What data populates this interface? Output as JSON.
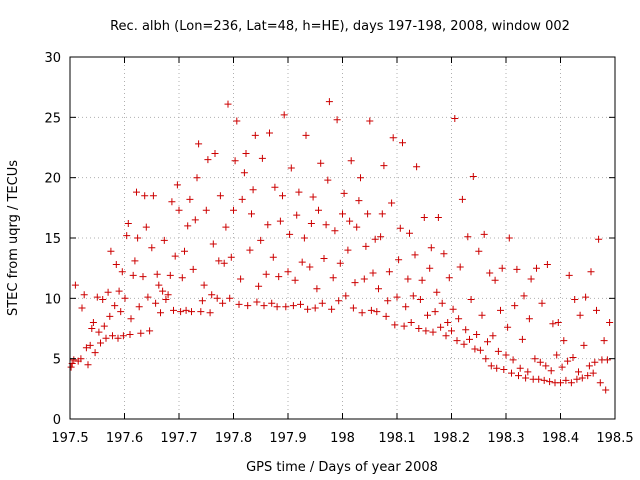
{
  "chart_data": {
    "type": "scatter",
    "title": "Rec. albh (Lon=236, Lat=48, h=HE), days 197-198, 2008, window 002",
    "xlabel": "GPS time / Days of year 2008",
    "ylabel": "STEC from uqrg / TECUs",
    "xlim": [
      197.5,
      198.5
    ],
    "ylim": [
      0,
      30
    ],
    "x_ticks": [
      197.5,
      197.6,
      197.7,
      197.8,
      197.9,
      198,
      198.1,
      198.2,
      198.3,
      198.4,
      198.5
    ],
    "x_tick_labels": [
      "197.5",
      "197.6",
      "197.7",
      "197.8",
      "197.9",
      "198",
      "198.1",
      "198.2",
      "198.3",
      "198.4",
      "198.5"
    ],
    "y_ticks": [
      0,
      5,
      10,
      15,
      20,
      25,
      30
    ],
    "y_tick_labels": [
      "0",
      "5",
      "10",
      "15",
      "20",
      "25",
      "30"
    ],
    "grid": true,
    "marker": "plus",
    "color": "#cc0000",
    "series": [
      {
        "points": [
          [
            197.502,
            4.3
          ],
          [
            197.504,
            4.6
          ],
          [
            197.507,
            4.9
          ],
          [
            197.51,
            11.1
          ],
          [
            197.515,
            4.8
          ],
          [
            197.52,
            5.0
          ],
          [
            197.522,
            9.2
          ],
          [
            197.526,
            10.3
          ],
          [
            197.53,
            5.9
          ],
          [
            197.533,
            4.5
          ],
          [
            197.537,
            6.1
          ],
          [
            197.54,
            7.5
          ],
          [
            197.543,
            8.0
          ],
          [
            197.546,
            5.5
          ],
          [
            197.55,
            10.1
          ],
          [
            197.553,
            7.2
          ],
          [
            197.556,
            6.3
          ],
          [
            197.56,
            9.9
          ],
          [
            197.563,
            7.7
          ],
          [
            197.566,
            6.7
          ],
          [
            197.57,
            10.5
          ],
          [
            197.573,
            8.5
          ],
          [
            197.575,
            13.9
          ],
          [
            197.578,
            6.9
          ],
          [
            197.582,
            9.4
          ],
          [
            197.585,
            12.8
          ],
          [
            197.588,
            6.7
          ],
          [
            197.59,
            10.6
          ],
          [
            197.593,
            8.9
          ],
          [
            197.596,
            12.2
          ],
          [
            197.598,
            6.9
          ],
          [
            197.601,
            10.0
          ],
          [
            197.604,
            15.2
          ],
          [
            197.607,
            16.2
          ],
          [
            197.61,
            7.0
          ],
          [
            197.612,
            8.3
          ],
          [
            197.616,
            11.9
          ],
          [
            197.619,
            13.1
          ],
          [
            197.622,
            18.8
          ],
          [
            197.624,
            15.0
          ],
          [
            197.627,
            9.3
          ],
          [
            197.63,
            7.1
          ],
          [
            197.634,
            11.8
          ],
          [
            197.637,
            18.5
          ],
          [
            197.64,
            15.9
          ],
          [
            197.643,
            10.1
          ],
          [
            197.646,
            7.3
          ],
          [
            197.65,
            14.2
          ],
          [
            197.653,
            18.5
          ],
          [
            197.657,
            9.6
          ],
          [
            197.66,
            12.0
          ],
          [
            197.663,
            11.1
          ],
          [
            197.666,
            8.8
          ],
          [
            197.67,
            10.6
          ],
          [
            197.673,
            14.8
          ],
          [
            197.676,
            9.9
          ],
          [
            197.68,
            10.3
          ],
          [
            197.684,
            11.9
          ],
          [
            197.687,
            18.0
          ],
          [
            197.69,
            9.0
          ],
          [
            197.693,
            13.5
          ],
          [
            197.697,
            19.4
          ],
          [
            197.7,
            17.3
          ],
          [
            197.703,
            8.9
          ],
          [
            197.706,
            11.7
          ],
          [
            197.71,
            13.9
          ],
          [
            197.713,
            9.0
          ],
          [
            197.716,
            16.0
          ],
          [
            197.72,
            18.2
          ],
          [
            197.723,
            8.9
          ],
          [
            197.726,
            12.4
          ],
          [
            197.73,
            16.5
          ],
          [
            197.733,
            20.0
          ],
          [
            197.736,
            22.8
          ],
          [
            197.74,
            8.9
          ],
          [
            197.743,
            9.8
          ],
          [
            197.746,
            11.1
          ],
          [
            197.75,
            17.3
          ],
          [
            197.753,
            21.5
          ],
          [
            197.757,
            8.8
          ],
          [
            197.76,
            10.3
          ],
          [
            197.763,
            14.5
          ],
          [
            197.766,
            22.0
          ],
          [
            197.77,
            10.0
          ],
          [
            197.773,
            13.1
          ],
          [
            197.776,
            18.5
          ],
          [
            197.78,
            9.6
          ],
          [
            197.783,
            12.9
          ],
          [
            197.786,
            15.9
          ],
          [
            197.79,
            26.1
          ],
          [
            197.793,
            10.0
          ],
          [
            197.796,
            13.4
          ],
          [
            197.8,
            17.3
          ],
          [
            197.803,
            21.4
          ],
          [
            197.806,
            24.7
          ],
          [
            197.81,
            9.5
          ],
          [
            197.813,
            11.6
          ],
          [
            197.816,
            18.2
          ],
          [
            197.82,
            20.4
          ],
          [
            197.823,
            22.0
          ],
          [
            197.826,
            9.4
          ],
          [
            197.83,
            14.0
          ],
          [
            197.833,
            17.0
          ],
          [
            197.836,
            19.0
          ],
          [
            197.84,
            23.5
          ],
          [
            197.843,
            9.7
          ],
          [
            197.846,
            11.0
          ],
          [
            197.85,
            14.8
          ],
          [
            197.853,
            21.6
          ],
          [
            197.856,
            9.4
          ],
          [
            197.86,
            12.0
          ],
          [
            197.863,
            16.1
          ],
          [
            197.866,
            23.7
          ],
          [
            197.87,
            9.6
          ],
          [
            197.873,
            13.4
          ],
          [
            197.876,
            19.2
          ],
          [
            197.88,
            9.3
          ],
          [
            197.883,
            11.8
          ],
          [
            197.886,
            16.4
          ],
          [
            197.89,
            18.5
          ],
          [
            197.893,
            25.2
          ],
          [
            197.896,
            9.3
          ],
          [
            197.9,
            12.2
          ],
          [
            197.903,
            15.3
          ],
          [
            197.906,
            20.8
          ],
          [
            197.91,
            9.4
          ],
          [
            197.913,
            11.5
          ],
          [
            197.916,
            16.9
          ],
          [
            197.92,
            18.8
          ],
          [
            197.923,
            9.5
          ],
          [
            197.926,
            13.0
          ],
          [
            197.93,
            15.0
          ],
          [
            197.933,
            23.5
          ],
          [
            197.936,
            9.1
          ],
          [
            197.94,
            12.6
          ],
          [
            197.943,
            16.2
          ],
          [
            197.946,
            18.4
          ],
          [
            197.95,
            9.2
          ],
          [
            197.953,
            10.8
          ],
          [
            197.956,
            17.3
          ],
          [
            197.96,
            21.2
          ],
          [
            197.963,
            9.6
          ],
          [
            197.966,
            13.3
          ],
          [
            197.97,
            16.1
          ],
          [
            197.973,
            19.8
          ],
          [
            197.976,
            26.3
          ],
          [
            197.98,
            9.1
          ],
          [
            197.983,
            11.7
          ],
          [
            197.986,
            15.6
          ],
          [
            197.99,
            24.8
          ],
          [
            197.993,
            9.8
          ],
          [
            197.996,
            12.9
          ],
          [
            198.0,
            17.0
          ],
          [
            198.003,
            18.7
          ],
          [
            198.006,
            10.2
          ],
          [
            198.01,
            14.0
          ],
          [
            198.013,
            16.4
          ],
          [
            198.016,
            21.4
          ],
          [
            198.02,
            9.2
          ],
          [
            198.023,
            11.3
          ],
          [
            198.026,
            15.9
          ],
          [
            198.03,
            18.1
          ],
          [
            198.033,
            20.0
          ],
          [
            198.036,
            8.8
          ],
          [
            198.04,
            11.6
          ],
          [
            198.043,
            14.3
          ],
          [
            198.046,
            17.0
          ],
          [
            198.05,
            24.7
          ],
          [
            198.053,
            9.0
          ],
          [
            198.056,
            12.1
          ],
          [
            198.06,
            14.9
          ],
          [
            198.063,
            8.9
          ],
          [
            198.066,
            10.8
          ],
          [
            198.07,
            15.1
          ],
          [
            198.073,
            17.0
          ],
          [
            198.076,
            21.0
          ],
          [
            198.08,
            8.5
          ],
          [
            198.083,
            9.8
          ],
          [
            198.086,
            12.2
          ],
          [
            198.09,
            17.9
          ],
          [
            198.093,
            23.3
          ],
          [
            198.096,
            7.8
          ],
          [
            198.1,
            10.1
          ],
          [
            198.103,
            13.2
          ],
          [
            198.106,
            15.8
          ],
          [
            198.11,
            22.9
          ],
          [
            198.113,
            7.7
          ],
          [
            198.116,
            9.3
          ],
          [
            198.12,
            11.6
          ],
          [
            198.123,
            15.4
          ],
          [
            198.126,
            8.0
          ],
          [
            198.13,
            10.2
          ],
          [
            198.133,
            13.6
          ],
          [
            198.136,
            20.9
          ],
          [
            198.14,
            7.5
          ],
          [
            198.143,
            9.9
          ],
          [
            198.146,
            11.5
          ],
          [
            198.15,
            16.7
          ],
          [
            198.153,
            7.3
          ],
          [
            198.156,
            8.6
          ],
          [
            198.16,
            12.5
          ],
          [
            198.163,
            14.2
          ],
          [
            198.166,
            7.2
          ],
          [
            198.17,
            8.9
          ],
          [
            198.173,
            10.5
          ],
          [
            198.176,
            16.7
          ],
          [
            198.18,
            7.6
          ],
          [
            198.183,
            9.6
          ],
          [
            198.186,
            13.7
          ],
          [
            198.19,
            6.9
          ],
          [
            198.193,
            8.0
          ],
          [
            198.196,
            11.7
          ],
          [
            198.2,
            7.3
          ],
          [
            198.203,
            9.1
          ],
          [
            198.206,
            24.9
          ],
          [
            198.21,
            6.5
          ],
          [
            198.213,
            8.3
          ],
          [
            198.216,
            12.6
          ],
          [
            198.22,
            18.2
          ],
          [
            198.223,
            6.2
          ],
          [
            198.226,
            7.4
          ],
          [
            198.23,
            15.1
          ],
          [
            198.233,
            6.6
          ],
          [
            198.236,
            9.9
          ],
          [
            198.24,
            20.1
          ],
          [
            198.243,
            5.8
          ],
          [
            198.246,
            7.0
          ],
          [
            198.25,
            13.9
          ],
          [
            198.253,
            5.7
          ],
          [
            198.256,
            8.6
          ],
          [
            198.26,
            15.3
          ],
          [
            198.263,
            5.0
          ],
          [
            198.266,
            6.4
          ],
          [
            198.27,
            12.1
          ],
          [
            198.273,
            4.4
          ],
          [
            198.276,
            6.9
          ],
          [
            198.28,
            11.5
          ],
          [
            198.283,
            4.2
          ],
          [
            198.286,
            5.6
          ],
          [
            198.29,
            9.0
          ],
          [
            198.293,
            12.5
          ],
          [
            198.296,
            4.1
          ],
          [
            198.3,
            5.3
          ],
          [
            198.303,
            7.6
          ],
          [
            198.306,
            15.0
          ],
          [
            198.31,
            3.8
          ],
          [
            198.313,
            4.9
          ],
          [
            198.316,
            9.4
          ],
          [
            198.32,
            12.4
          ],
          [
            198.323,
            3.6
          ],
          [
            198.326,
            4.2
          ],
          [
            198.33,
            6.6
          ],
          [
            198.333,
            10.2
          ],
          [
            198.336,
            3.4
          ],
          [
            198.34,
            3.9
          ],
          [
            198.343,
            8.3
          ],
          [
            198.346,
            11.6
          ],
          [
            198.35,
            3.3
          ],
          [
            198.353,
            5.0
          ],
          [
            198.356,
            12.5
          ],
          [
            198.36,
            3.3
          ],
          [
            198.363,
            4.7
          ],
          [
            198.366,
            9.6
          ],
          [
            198.37,
            3.2
          ],
          [
            198.373,
            4.4
          ],
          [
            198.376,
            12.8
          ],
          [
            198.38,
            3.1
          ],
          [
            198.383,
            4.0
          ],
          [
            198.386,
            7.9
          ],
          [
            198.39,
            3.0
          ],
          [
            198.393,
            5.3
          ],
          [
            198.396,
            8.0
          ],
          [
            198.4,
            3.0
          ],
          [
            198.403,
            4.3
          ],
          [
            198.406,
            6.5
          ],
          [
            198.41,
            3.2
          ],
          [
            198.413,
            4.8
          ],
          [
            198.416,
            11.9
          ],
          [
            198.42,
            3.0
          ],
          [
            198.423,
            5.1
          ],
          [
            198.426,
            9.9
          ],
          [
            198.43,
            3.3
          ],
          [
            198.433,
            3.9
          ],
          [
            198.436,
            8.6
          ],
          [
            198.44,
            3.4
          ],
          [
            198.443,
            6.1
          ],
          [
            198.446,
            10.1
          ],
          [
            198.45,
            3.6
          ],
          [
            198.453,
            4.4
          ],
          [
            198.456,
            12.2
          ],
          [
            198.46,
            3.8
          ],
          [
            198.463,
            4.7
          ],
          [
            198.466,
            9.0
          ],
          [
            198.47,
            14.9
          ],
          [
            198.473,
            3.0
          ],
          [
            198.476,
            4.9
          ],
          [
            198.48,
            6.5
          ],
          [
            198.483,
            2.4
          ],
          [
            198.486,
            4.9
          ],
          [
            198.49,
            8.0
          ]
        ]
      }
    ]
  }
}
